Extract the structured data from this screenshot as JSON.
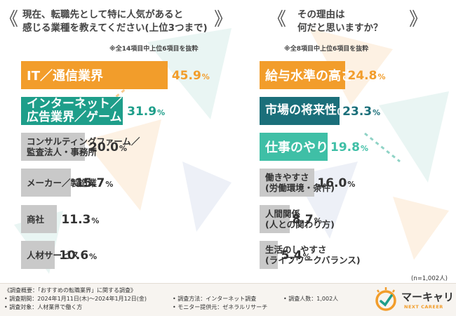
{
  "left_panel": {
    "open_bracket": "《",
    "close_bracket": "》",
    "title_line1": "現在、転職先として特に人気があると",
    "title_line2": "感じる業種を教えてください(上位3つまで)",
    "note": "※全14項目中上位6項目を抜粋"
  },
  "right_panel": {
    "open_bracket": "《",
    "close_bracket": "》",
    "title_line1": "その理由は",
    "title_line2": "何だと思いますか？",
    "note": "※全8項目中上位6項目を抜粋",
    "sample": "(n=1,002人)"
  },
  "chart_data": [
    {
      "type": "bar",
      "orientation": "horizontal",
      "categories": [
        "IT／通信業界",
        "インターネット／広告業界／ゲーム",
        "コンサルティングファーム／監査法人・事務所",
        "メーカー／製造業",
        "商社",
        "人材サービス"
      ],
      "labels": [
        [
          "IT／通信業界"
        ],
        [
          "インターネット／",
          "広告業界／ゲーム"
        ],
        [
          "コンサルティングファーム／",
          "監査法人・事務所"
        ],
        [
          "メーカー／製造業"
        ],
        [
          "商社"
        ],
        [
          "人材サービス"
        ]
      ],
      "values": [
        45.9,
        31.9,
        20.0,
        15.7,
        11.3,
        10.6
      ],
      "value_labels": [
        "45.9",
        "31.9",
        "20.0",
        "15.7",
        "11.3",
        "10.6"
      ],
      "unit": "%",
      "colors": [
        "#f29d2b",
        "#1e9e8a",
        "#c9c9c9",
        "#c9c9c9",
        "#c9c9c9",
        "#c9c9c9"
      ],
      "value_colors": [
        "#f29d2b",
        "#1e9e8a",
        "#333333",
        "#333333",
        "#333333",
        "#333333"
      ]
    },
    {
      "type": "bar",
      "orientation": "horizontal",
      "categories": [
        "給与水準の高さ",
        "市場の将来性(成長率)",
        "仕事のやりがい",
        "働きやすさ(労働環境・条件)",
        "人間関係(人との関わり方)",
        "生活のしやすさ(ライフワークバランス)"
      ],
      "labels": [
        [
          "給与水準の高さ"
        ],
        [
          "市場の将来性",
          "(成長率)"
        ],
        [
          "仕事のやりがい"
        ],
        [
          "働きやすさ",
          "(労働環境・条件)"
        ],
        [
          "人間関係",
          "(人との関わり方)"
        ],
        [
          "生活のしやすさ",
          "(ライフワークバランス)"
        ]
      ],
      "values": [
        24.8,
        23.3,
        19.8,
        16.0,
        8.7,
        5.4
      ],
      "value_labels": [
        "24.8",
        "23.3",
        "19.8",
        "16.0",
        "8.7",
        "5.4"
      ],
      "unit": "%",
      "colors": [
        "#f29d2b",
        "#1b6f7a",
        "#3fbfa6",
        "#c9c9c9",
        "#c9c9c9",
        "#c9c9c9"
      ],
      "value_colors": [
        "#f29d2b",
        "#1b6f7a",
        "#3fbfa6",
        "#333333",
        "#333333",
        "#333333"
      ]
    }
  ],
  "footer": {
    "overview": "《調査概要：「おすすめの転職業界」に関する調査》",
    "period": "• 調査期間：2024年1月11日(木)〜2024年1月12日(金)",
    "target": "• 調査対象：人材業界で働く方",
    "method": "• 調査方法：インターネット調査",
    "provider": "• モニター提供元：ゼネラルリサーチ",
    "count": "• 調査人数：1,002人",
    "logo": "マーキャリ",
    "logo_sub": "NEXT CAREER"
  }
}
